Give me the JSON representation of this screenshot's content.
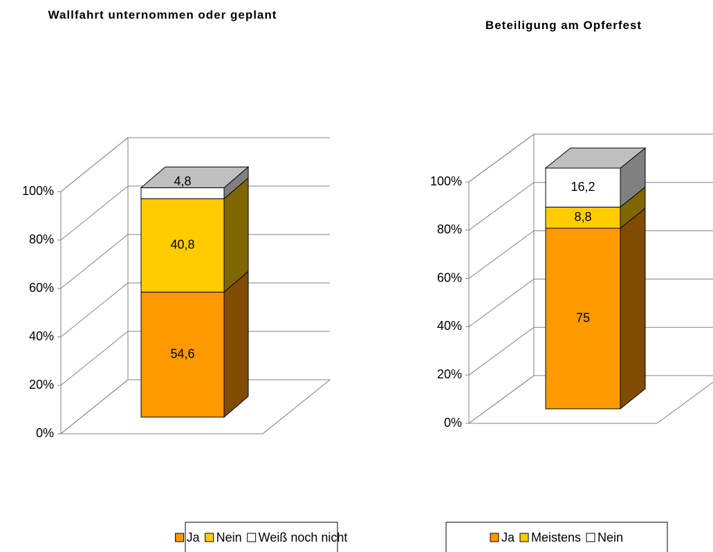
{
  "chart_data": [
    {
      "type": "bar3d_stacked",
      "title": "Wallfahrt unternommen oder geplant",
      "ylim": [
        0,
        100
      ],
      "yticks": [
        {
          "value": 0,
          "label": "0%"
        },
        {
          "value": 20,
          "label": "20%"
        },
        {
          "value": 40,
          "label": "40%"
        },
        {
          "value": 60,
          "label": "60%"
        },
        {
          "value": 80,
          "label": "80%"
        },
        {
          "value": 100,
          "label": "100%"
        }
      ],
      "grid": true,
      "legend": "bottom",
      "series": [
        {
          "name": "Ja",
          "color": "#FF9900",
          "values": [
            54.6
          ],
          "value_labels": [
            "54,6"
          ]
        },
        {
          "name": "Nein",
          "color": "#FFCC00",
          "values": [
            40.8
          ],
          "value_labels": [
            "40,8"
          ]
        },
        {
          "name": "Weiß noch nicht",
          "color": "#FFFFFF",
          "values": [
            4.8
          ],
          "value_labels": [
            "4,8"
          ]
        }
      ]
    },
    {
      "type": "bar3d_stacked",
      "title": "Beteiligung am Opferfest",
      "ylim": [
        0,
        100
      ],
      "yticks": [
        {
          "value": 0,
          "label": "0%"
        },
        {
          "value": 20,
          "label": "20%"
        },
        {
          "value": 40,
          "label": "40%"
        },
        {
          "value": 60,
          "label": "60%"
        },
        {
          "value": 80,
          "label": "80%"
        },
        {
          "value": 100,
          "label": "100%"
        }
      ],
      "grid": true,
      "legend": "bottom",
      "series": [
        {
          "name": "Ja",
          "color": "#FF9900",
          "values": [
            75
          ],
          "value_labels": [
            "75"
          ]
        },
        {
          "name": "Meistens",
          "color": "#FFCC00",
          "values": [
            8.8
          ],
          "value_labels": [
            "8,8"
          ]
        },
        {
          "name": "Nein",
          "color": "#FFFFFF",
          "values": [
            16.2
          ],
          "value_labels": [
            "16,2"
          ]
        }
      ]
    }
  ]
}
